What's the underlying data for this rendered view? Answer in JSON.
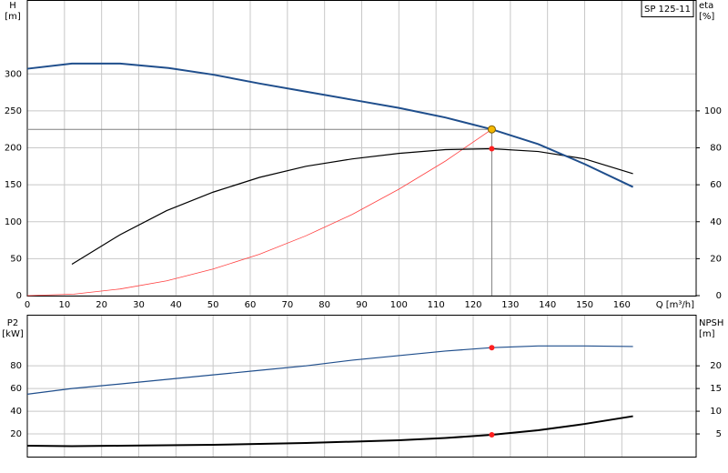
{
  "chart_data": [
    {
      "type": "line",
      "title": "SP 125-11",
      "y_label": "H",
      "y_unit": "[m]",
      "y2_label": "eta",
      "y2_unit": "[%]",
      "x_label": "Q [m³/h]",
      "xlim": [
        0,
        180
      ],
      "xticks": [
        0,
        10,
        20,
        30,
        40,
        50,
        60,
        70,
        80,
        90,
        100,
        110,
        120,
        130,
        140,
        150,
        160
      ],
      "ylim": [
        0,
        400
      ],
      "yticks": [
        0,
        50,
        100,
        150,
        200,
        250,
        300
      ],
      "y2lim": [
        0,
        160
      ],
      "y2ticks": [
        0,
        20,
        40,
        60,
        80,
        100
      ],
      "grid": true,
      "series": [
        {
          "style": "guide",
          "color": "#808080",
          "x": [
            0,
            125,
            125
          ],
          "values": [
            225,
            225,
            0
          ]
        },
        {
          "style": "line",
          "color": "#ff4040",
          "width": 0.8,
          "x": [
            0,
            12.5,
            25,
            37.5,
            50,
            62.5,
            75,
            87.5,
            100,
            112.5,
            125
          ],
          "values": [
            0,
            2,
            9,
            20,
            36,
            56,
            81,
            110,
            144,
            182,
            225
          ]
        },
        {
          "style": "line",
          "color": "#000000",
          "width": 1.2,
          "axis": "y2",
          "x": [
            12,
            25,
            37.5,
            50,
            62.5,
            75,
            87.5,
            100,
            112.5,
            125,
            137.5,
            150,
            163
          ],
          "values": [
            17,
            33,
            46,
            56,
            64,
            70,
            74,
            77,
            79,
            79.5,
            78,
            74,
            66
          ]
        },
        {
          "style": "line",
          "color": "#1f4e8c",
          "width": 2,
          "x": [
            0,
            12,
            25,
            38,
            50,
            62.5,
            75,
            87.5,
            100,
            112.5,
            125,
            137.5,
            150,
            163
          ],
          "values": [
            307,
            314,
            314,
            308,
            299,
            287,
            276,
            265,
            254,
            241,
            225,
            205,
            178,
            147
          ]
        },
        {
          "style": "marker",
          "color": "#ff2020",
          "axis": "y2",
          "x": [
            125
          ],
          "values": [
            79.5
          ]
        },
        {
          "style": "marker",
          "color": "#f5b800",
          "x": [
            125
          ],
          "values": [
            225
          ]
        }
      ]
    },
    {
      "type": "line",
      "y_label": "P2",
      "y_unit": "[kW]",
      "y2_label": "NPSH",
      "y2_unit": "[m]",
      "xlim": [
        0,
        180
      ],
      "xticks": [
        0,
        10,
        20,
        30,
        40,
        50,
        60,
        70,
        80,
        90,
        100,
        110,
        120,
        130,
        140,
        150,
        160
      ],
      "ylim": [
        0,
        125
      ],
      "yticks": [
        20,
        40,
        60,
        80
      ],
      "y2lim": [
        0,
        31.25
      ],
      "y2ticks": [
        5,
        10,
        15,
        20
      ],
      "grid": true,
      "series": [
        {
          "style": "line",
          "color": "#1f4e8c",
          "width": 1.2,
          "x": [
            0,
            12,
            25,
            37.5,
            50,
            62.5,
            75,
            87.5,
            100,
            112.5,
            125,
            137.5,
            150,
            163
          ],
          "values": [
            55,
            60,
            64,
            68,
            72,
            76,
            80,
            85,
            89,
            93,
            96,
            97.5,
            97.5,
            97
          ]
        },
        {
          "style": "line",
          "color": "#000000",
          "width": 2,
          "axis": "y2",
          "x": [
            0,
            12,
            25,
            50,
            75,
            100,
            112.5,
            125,
            137.5,
            150,
            163
          ],
          "values": [
            2.4,
            2.3,
            2.4,
            2.6,
            3,
            3.6,
            4.1,
            4.8,
            5.8,
            7.2,
            8.9
          ]
        },
        {
          "style": "marker",
          "color": "#ff2020",
          "x": [
            125
          ],
          "values": [
            96
          ]
        },
        {
          "style": "marker",
          "color": "#ff2020",
          "axis": "y2",
          "x": [
            125
          ],
          "values": [
            4.8
          ]
        }
      ]
    }
  ]
}
